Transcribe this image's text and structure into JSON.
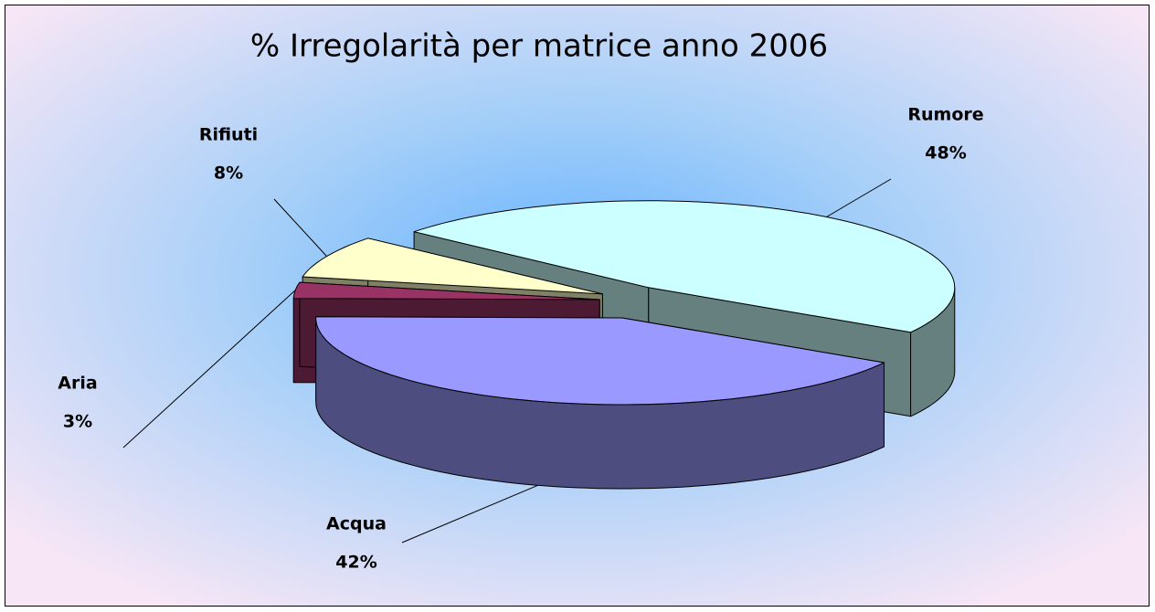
{
  "chart_data": {
    "type": "pie",
    "title": "% Irregolarità per matrice anno 2006",
    "categories": [
      "Rumore",
      "Acqua",
      "Aria",
      "Rifiuti"
    ],
    "values": [
      48,
      42,
      3,
      8
    ],
    "value_labels": [
      "48%",
      "42%",
      "3%",
      "8%"
    ],
    "colors": [
      "#ccffff",
      "#9999ff",
      "#993366",
      "#ffffcc"
    ]
  }
}
